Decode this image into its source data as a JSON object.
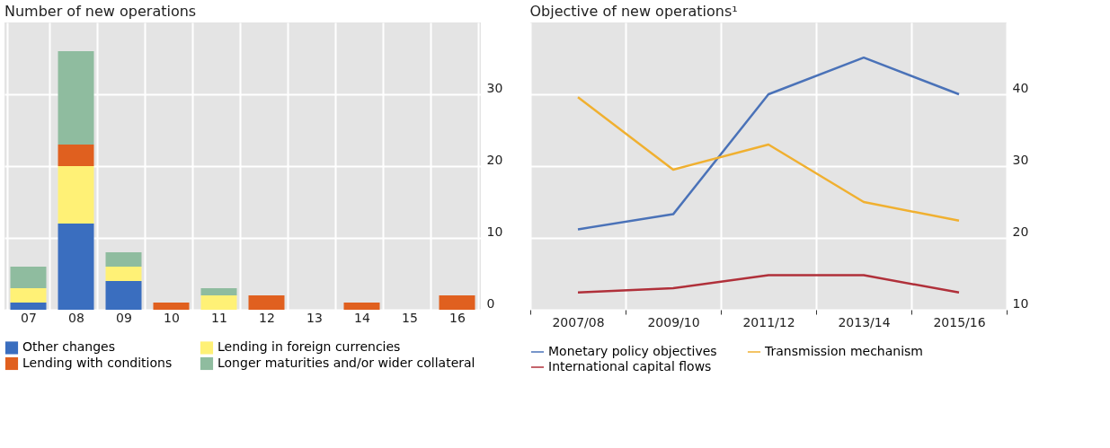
{
  "chart_data": [
    {
      "type": "bar",
      "title": "Number of new operations",
      "stacked": true,
      "categories": [
        "07",
        "08",
        "09",
        "10",
        "11",
        "12",
        "13",
        "14",
        "15",
        "16"
      ],
      "series": [
        {
          "name": "Other changes",
          "color": "#3a6ebf",
          "values": [
            1,
            12,
            4,
            0,
            0,
            0,
            0,
            0,
            0,
            0
          ]
        },
        {
          "name": "Lending in foreign currencies",
          "color": "#fff176",
          "values": [
            2,
            8,
            2,
            0,
            2,
            0,
            0,
            0,
            0,
            0
          ]
        },
        {
          "name": "Lending with conditions",
          "color": "#e0601f",
          "values": [
            0,
            3,
            0,
            1,
            0,
            2,
            0,
            1,
            0,
            2
          ]
        },
        {
          "name": "Longer maturities and/or wider collateral",
          "color": "#8fbc9f",
          "values": [
            3,
            13,
            2,
            0,
            1,
            0,
            0,
            0,
            0,
            0
          ]
        }
      ],
      "ylim": [
        0,
        40
      ],
      "yticks": [
        0,
        10,
        20,
        30
      ],
      "grid": true,
      "legend": "bottom"
    },
    {
      "type": "line",
      "title": "Objective of new operations¹",
      "categories": [
        "2007/08",
        "2009/10",
        "2011/12",
        "2013/14",
        "2015/16"
      ],
      "series": [
        {
          "name": "Monetary policy objectives",
          "color": "#4a72b8",
          "values": [
            21.2,
            23.3,
            40,
            45.1,
            40
          ]
        },
        {
          "name": "Transmission mechanism",
          "color": "#f0b030",
          "values": [
            39.6,
            29.5,
            33,
            25,
            22.4
          ]
        },
        {
          "name": "International capital flows",
          "color": "#b0303a",
          "values": [
            12.4,
            13,
            14.8,
            14.8,
            12.4
          ]
        }
      ],
      "ylim": [
        10,
        50
      ],
      "yticks": [
        10,
        20,
        30,
        40
      ],
      "grid": true,
      "legend": "bottom",
      "marker": "none",
      "line_style": "solid"
    }
  ]
}
